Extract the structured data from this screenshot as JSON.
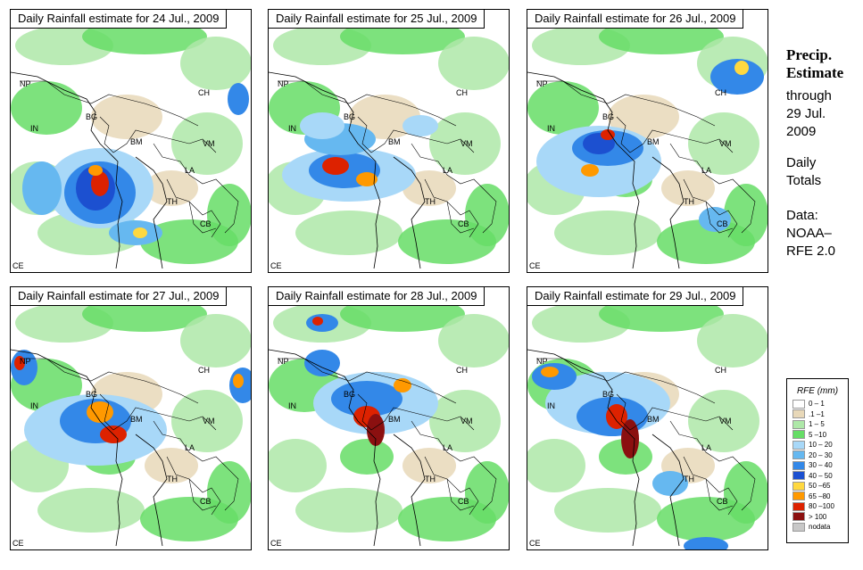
{
  "panels": [
    {
      "title": "Daily Rainfall estimate for  24 Jul., 2009"
    },
    {
      "title": "Daily Rainfall estimate for  25 Jul., 2009"
    },
    {
      "title": "Daily Rainfall estimate for  26 Jul., 2009"
    },
    {
      "title": "Daily Rainfall estimate for  27 Jul., 2009"
    },
    {
      "title": "Daily Rainfall estimate for  28 Jul., 2009"
    },
    {
      "title": "Daily Rainfall estimate for  29 Jul., 2009"
    }
  ],
  "country_labels": {
    "np": "NP",
    "ch": "CH",
    "bg": "BG",
    "in": "IN",
    "bm": "BM",
    "vm": "VM",
    "la": "LA",
    "th": "TH",
    "cb": "CB",
    "ce": "CE"
  },
  "side": {
    "title1": "Precip.",
    "title2": "Estimate",
    "through": "through",
    "date1": "29 Jul.",
    "date2": "2009",
    "daily1": "Daily",
    "daily2": "Totals",
    "data1": "Data:",
    "data2": "NOAA–",
    "data3": "RFE 2.0"
  },
  "legend": {
    "title": "RFE (mm)",
    "items": [
      {
        "label": "0 – 1",
        "color": "#ffffff"
      },
      {
        "label": ".1 –1",
        "color": "#e8d8b8"
      },
      {
        "label": "1 – 5",
        "color": "#aee8a8"
      },
      {
        "label": "5 –10",
        "color": "#66dd66"
      },
      {
        "label": "10 – 20",
        "color": "#a8d8f8"
      },
      {
        "label": "20 – 30",
        "color": "#66b8f0"
      },
      {
        "label": "30 – 40",
        "color": "#3388e8"
      },
      {
        "label": "40 – 50",
        "color": "#1c50d0"
      },
      {
        "label": "50 –65",
        "color": "#ffd840"
      },
      {
        "label": "65 –80",
        "color": "#ff9900"
      },
      {
        "label": "80 –100",
        "color": "#dd2200"
      },
      {
        "label": "> 100",
        "color": "#8b1010"
      },
      {
        "label": "nodata",
        "color": "#c8c8c8"
      }
    ]
  }
}
